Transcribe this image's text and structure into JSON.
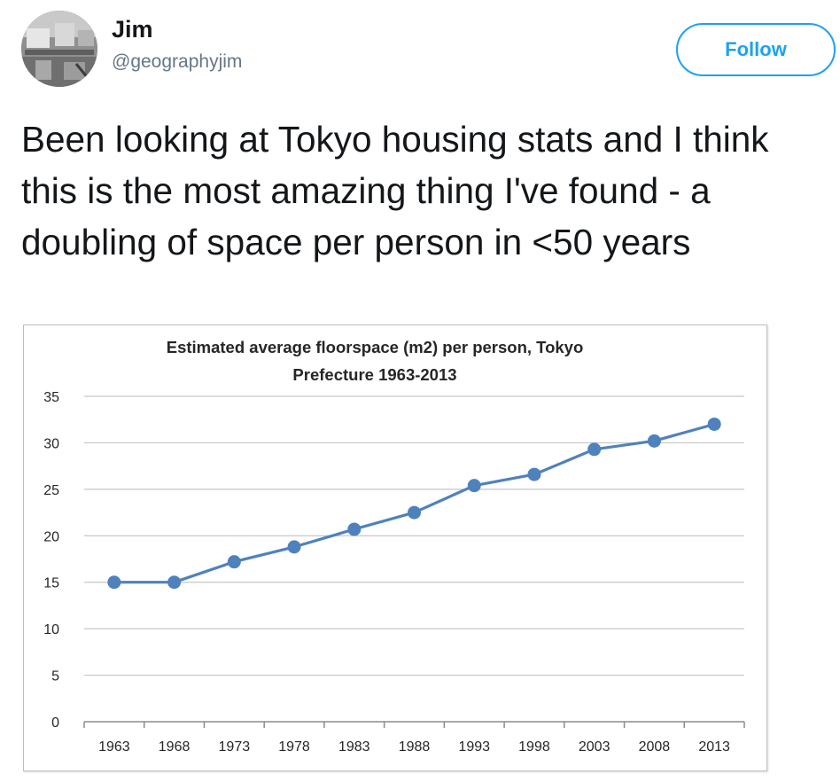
{
  "tweet": {
    "author_name": "Jim",
    "author_handle": "@geographyjim",
    "follow_label": "Follow",
    "text": "Been looking at Tokyo housing stats and I think this is the most amazing thing I've found - a doubling of space per person in <50 years"
  },
  "colors": {
    "accent": "#1da1f2",
    "series": "#4f81bd",
    "gridline": "#c6c6c6"
  },
  "chart_data": {
    "type": "line",
    "title_line1": "Estimated average floorspace (m2) per person, Tokyo",
    "title_line2": "Prefecture 1963-2013",
    "xlabel": "",
    "ylabel": "",
    "ylim": [
      0,
      35
    ],
    "yticks": [
      "0",
      "5",
      "10",
      "15",
      "20",
      "25",
      "30",
      "35"
    ],
    "categories": [
      "1963",
      "1968",
      "1973",
      "1978",
      "1983",
      "1988",
      "1993",
      "1998",
      "2003",
      "2008",
      "2013"
    ],
    "values": [
      15.0,
      15.0,
      17.2,
      18.8,
      20.7,
      22.5,
      25.4,
      26.6,
      29.3,
      30.2,
      32.0
    ],
    "grid": "horizontal",
    "legend": "none",
    "marker": "circle"
  }
}
